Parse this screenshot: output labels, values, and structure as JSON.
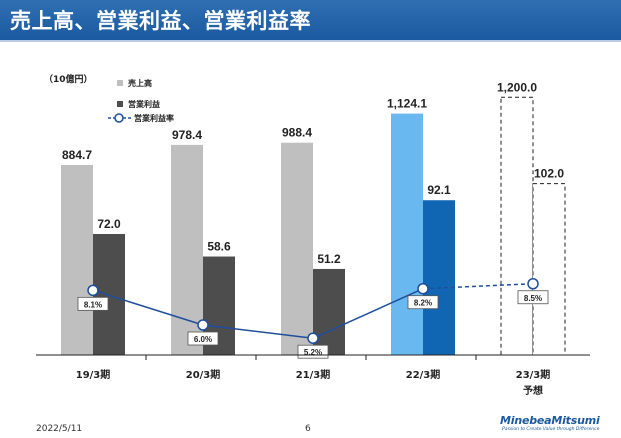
{
  "header": {
    "title": "売上高、営業利益、営業利益率"
  },
  "unit_label": "（10億円）",
  "legend": {
    "sales": "売上高",
    "profit": "営業利益",
    "rate": "営業利益率"
  },
  "footer": {
    "date": "2022/5/11",
    "page": "6",
    "logo": "MinebeaMitsumi",
    "tagline": "Passion to Create Value through Difference"
  },
  "colors": {
    "title_bg": "#1b5aa0",
    "sales_gray": "#bfbfbf",
    "profit_dark": "#4d4d4d",
    "sales_highlight": "#6ab8f0",
    "profit_highlight": "#1166b4",
    "rate_line": "#1f4e9c"
  },
  "chart_data": {
    "type": "bar",
    "categories": [
      "19/3期",
      "20/3期",
      "21/3期",
      "22/3期",
      "23/3期"
    ],
    "category_sublabels": [
      "",
      "",
      "",
      "",
      "予想"
    ],
    "series": [
      {
        "name": "売上高",
        "values": [
          884.7,
          978.4,
          988.4,
          1124.1,
          1200.0
        ],
        "labels": [
          "884.7",
          "978.4",
          "988.4",
          "1,124.1",
          "1,200.0"
        ]
      },
      {
        "name": "営業利益",
        "values": [
          72.0,
          58.6,
          51.2,
          92.1,
          102.0
        ],
        "labels": [
          "72.0",
          "58.6",
          "51.2",
          "92.1",
          "102.0"
        ]
      },
      {
        "name": "営業利益率",
        "type": "line",
        "values": [
          8.1,
          6.0,
          5.2,
          8.2,
          8.5
        ],
        "labels": [
          "8.1%",
          "6.0%",
          "5.2%",
          "8.2%",
          "8.5%"
        ]
      }
    ],
    "forecast_category": "23/3期",
    "highlight_category": "22/3期"
  }
}
